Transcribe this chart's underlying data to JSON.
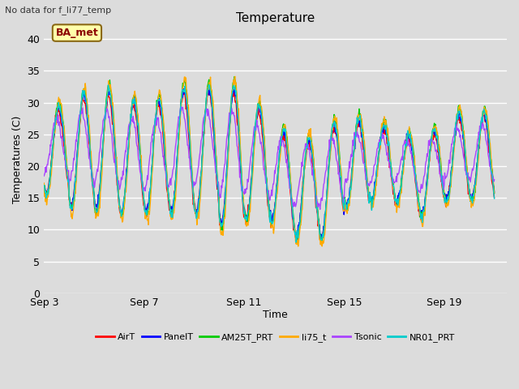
{
  "title": "Temperature",
  "ylabel": "Temperatures (C)",
  "xlabel": "Time",
  "annotation_top_left": "No data for f_li77_temp",
  "box_label": "BA_met",
  "ylim": [
    0,
    42
  ],
  "yticks": [
    0,
    5,
    10,
    15,
    20,
    25,
    30,
    35,
    40
  ],
  "xtick_labels": [
    "Sep 3",
    "Sep 7",
    "Sep 11",
    "Sep 15",
    "Sep 19"
  ],
  "xtick_positions": [
    0,
    4,
    8,
    12,
    16
  ],
  "xlim": [
    0,
    18.5
  ],
  "background_color": "#dcdcdc",
  "plot_bg_color": "#dcdcdc",
  "grid_color": "#ffffff",
  "series": [
    {
      "name": "AirT",
      "color": "#ff0000"
    },
    {
      "name": "PanelT",
      "color": "#0000ff"
    },
    {
      "name": "AM25T_PRT",
      "color": "#00cc00"
    },
    {
      "name": "li75_t",
      "color": "#ffaa00"
    },
    {
      "name": "Tsonic",
      "color": "#aa44ff"
    },
    {
      "name": "NR01_PRT",
      "color": "#00cccc"
    }
  ],
  "seed": 12345
}
